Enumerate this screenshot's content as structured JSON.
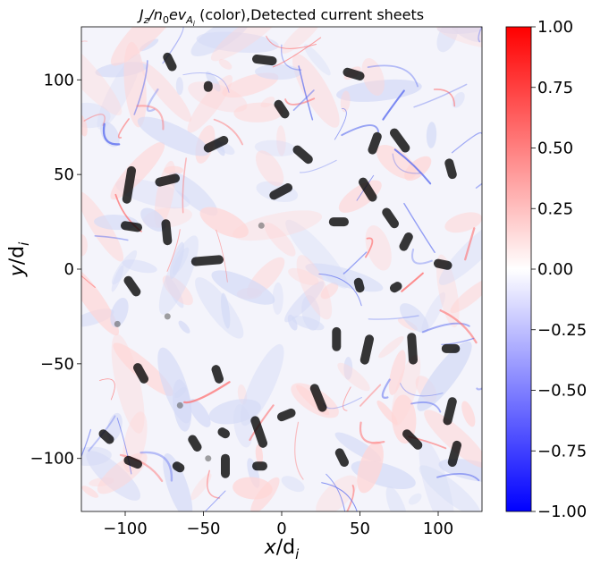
{
  "chart_data": {
    "type": "heatmap",
    "title_math": "J_z/n_0ev_{A_i}",
    "title_parts": {
      "j": "J",
      "z": "z",
      "slash_n": "/n",
      "zero": "0",
      "ev": "ev",
      "a": "A",
      "i": "i",
      "suffix": " (color),Detected current sheets"
    },
    "xlabel": "x/d_i",
    "xlabel_parts": {
      "var": "x",
      "slash_d": "/d",
      "sub": "i"
    },
    "ylabel": "y/d_i",
    "ylabel_parts": {
      "var": "y",
      "slash_d": "/d",
      "sub": "i"
    },
    "xlim": [
      -128,
      128
    ],
    "ylim": [
      -128,
      128
    ],
    "xticks": [
      -100,
      -50,
      0,
      50,
      100
    ],
    "xtick_labels": [
      "−100",
      "−50",
      "0",
      "50",
      "100"
    ],
    "yticks": [
      -100,
      -50,
      0,
      50,
      100
    ],
    "ytick_labels": [
      "−100",
      "−50",
      "0",
      "50",
      "100"
    ],
    "colorbar": {
      "colormap": "bwr",
      "range": [
        -1.0,
        1.0
      ],
      "ticks": [
        -1.0,
        -0.75,
        -0.5,
        -0.25,
        0.0,
        0.25,
        0.5,
        0.75,
        1.0
      ],
      "tick_labels": [
        "−1.00",
        "−0.75",
        "−0.50",
        "−0.25",
        "0.00",
        "0.25",
        "0.50",
        "0.75",
        "1.00"
      ],
      "colors": {
        "low": "#0000ff",
        "mid": "#ffffff",
        "high": "#ff0000"
      }
    },
    "current_sheets": [
      {
        "x1": -73,
        "y1": 112,
        "x2": -70,
        "y2": 107
      },
      {
        "x1": -47,
        "y1": 97,
        "x2": -47,
        "y2": 96
      },
      {
        "x1": -16,
        "y1": 111,
        "x2": -6,
        "y2": 110
      },
      {
        "x1": 42,
        "y1": 104,
        "x2": 50,
        "y2": 102
      },
      {
        "x1": -2,
        "y1": 87,
        "x2": 2,
        "y2": 82
      },
      {
        "x1": -47,
        "y1": 64,
        "x2": -37,
        "y2": 68
      },
      {
        "x1": 10,
        "y1": 63,
        "x2": 17,
        "y2": 58
      },
      {
        "x1": 61,
        "y1": 70,
        "x2": 58,
        "y2": 63
      },
      {
        "x1": 72,
        "y1": 72,
        "x2": 79,
        "y2": 64
      },
      {
        "x1": 107,
        "y1": 56,
        "x2": 109,
        "y2": 50
      },
      {
        "x1": -96,
        "y1": 52,
        "x2": -99,
        "y2": 37
      },
      {
        "x1": -78,
        "y1": 46,
        "x2": -68,
        "y2": 48
      },
      {
        "x1": -5,
        "y1": 39,
        "x2": 4,
        "y2": 43
      },
      {
        "x1": 52,
        "y1": 46,
        "x2": 58,
        "y2": 38
      },
      {
        "x1": -100,
        "y1": 23,
        "x2": -92,
        "y2": 22
      },
      {
        "x1": -74,
        "y1": 24,
        "x2": -73,
        "y2": 15
      },
      {
        "x1": 33,
        "y1": 25,
        "x2": 40,
        "y2": 25
      },
      {
        "x1": 67,
        "y1": 30,
        "x2": 72,
        "y2": 24
      },
      {
        "x1": 81,
        "y1": 17,
        "x2": 78,
        "y2": 12
      },
      {
        "x1": -55,
        "y1": 4,
        "x2": -40,
        "y2": 5
      },
      {
        "x1": 100,
        "y1": 3,
        "x2": 106,
        "y2": 2
      },
      {
        "x1": -98,
        "y1": -6,
        "x2": -93,
        "y2": -12
      },
      {
        "x1": 49,
        "y1": -7,
        "x2": 50,
        "y2": -10
      },
      {
        "x1": 72,
        "y1": -10,
        "x2": 74,
        "y2": -9
      },
      {
        "x1": 35,
        "y1": -33,
        "x2": 35,
        "y2": -41
      },
      {
        "x1": 56,
        "y1": -37,
        "x2": 53,
        "y2": -48
      },
      {
        "x1": 83,
        "y1": -36,
        "x2": 84,
        "y2": -48
      },
      {
        "x1": 105,
        "y1": -42,
        "x2": 111,
        "y2": -42
      },
      {
        "x1": -92,
        "y1": -52,
        "x2": -88,
        "y2": -58
      },
      {
        "x1": -42,
        "y1": -53,
        "x2": -40,
        "y2": -58
      },
      {
        "x1": 21,
        "y1": -63,
        "x2": 26,
        "y2": -73
      },
      {
        "x1": 109,
        "y1": -70,
        "x2": 106,
        "y2": -80
      },
      {
        "x1": 0,
        "y1": -78,
        "x2": 6,
        "y2": -76
      },
      {
        "x1": -17,
        "y1": -80,
        "x2": -12,
        "y2": -92
      },
      {
        "x1": -114,
        "y1": -87,
        "x2": -110,
        "y2": -90
      },
      {
        "x1": -38,
        "y1": -86,
        "x2": -36,
        "y2": -87
      },
      {
        "x1": 80,
        "y1": -87,
        "x2": 87,
        "y2": -93
      },
      {
        "x1": -57,
        "y1": -90,
        "x2": -54,
        "y2": -94
      },
      {
        "x1": 112,
        "y1": -93,
        "x2": 109,
        "y2": -102
      },
      {
        "x1": 37,
        "y1": -97,
        "x2": 40,
        "y2": -102
      },
      {
        "x1": -98,
        "y1": -101,
        "x2": -92,
        "y2": -103
      },
      {
        "x1": -36,
        "y1": -100,
        "x2": -36,
        "y2": -108
      },
      {
        "x1": -16,
        "y1": -104,
        "x2": -12,
        "y2": -104
      },
      {
        "x1": -67,
        "y1": -104,
        "x2": -65,
        "y2": -105
      }
    ],
    "faint_sheets": [
      {
        "x": -13,
        "y": 23
      },
      {
        "x": -73,
        "y": -25
      },
      {
        "x": -105,
        "y": -29
      },
      {
        "x": -65,
        "y": -72
      },
      {
        "x": -47,
        "y": -100
      }
    ],
    "sheet_color": "#000000",
    "grid": false
  }
}
